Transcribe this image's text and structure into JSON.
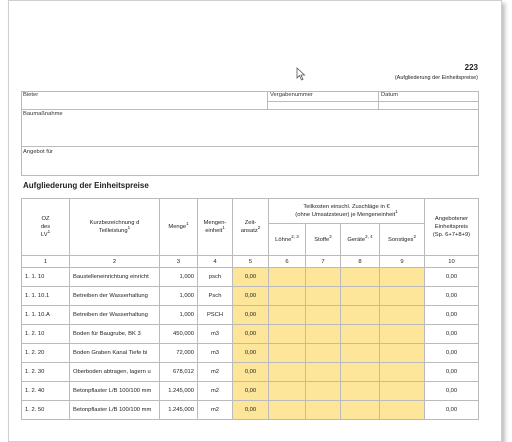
{
  "header": {
    "form_number": "223",
    "form_subtitle": "(Aufgliederung der Einheitspreise)"
  },
  "fields": {
    "bidder": "Bieter",
    "award_number": "Vergabenummer",
    "date": "Datum",
    "project": "Baumaßnahme",
    "offer_for": "Angebot für"
  },
  "section_title": "Aufgliederung der Einheitspreise",
  "table": {
    "columns": [
      {
        "lines": [
          "OZ",
          "des",
          "LV"
        ],
        "sup": "1"
      },
      {
        "lines": [
          "Kurzbezeichnung d",
          "Teilleistung"
        ],
        "sup": "1"
      },
      {
        "lines": [
          "Menge"
        ],
        "sup": "1"
      },
      {
        "lines": [
          "Mengen-",
          "einheit"
        ],
        "sup": "1"
      },
      {
        "lines": [
          "Zeit-",
          "ansatz"
        ],
        "sup": "2"
      },
      {
        "lines": [
          "Löhne"
        ],
        "sup": "2, 3"
      },
      {
        "lines": [
          "Stoffe"
        ],
        "sup": "2"
      },
      {
        "lines": [
          "Geräte"
        ],
        "sup": "2, 4"
      },
      {
        "lines": [
          "Sonstiges"
        ],
        "sup": "2"
      },
      {
        "lines": [
          "Angebotener",
          "Einheitspreis",
          "(Sp. 6+7+8+9)"
        ]
      }
    ],
    "group_header": {
      "line1": "Teilkosten einschl. Zuschläge in €",
      "line2": "(ohne Umsatzsteuer) je Mengeneinheit",
      "sup": "1"
    },
    "column_numbers": [
      "1",
      "2",
      "3",
      "4",
      "5",
      "6",
      "7",
      "8",
      "9",
      "10"
    ],
    "rows": [
      {
        "oz": "1. 1. 10",
        "description": "Baustelleneinrichtung einricht",
        "quantity": "1,000",
        "unit": "psch",
        "time": "0,00",
        "price": "0,00"
      },
      {
        "oz": "1. 1. 10.1",
        "description": "Betreiben der Wasserhaltung",
        "quantity": "1,000",
        "unit": "Psch",
        "time": "0,00",
        "price": "0,00"
      },
      {
        "oz": "1. 1. 10.A",
        "description": "Betreiben der Wasserhaltung",
        "quantity": "1,000",
        "unit": "PSCH",
        "time": "0,00",
        "price": "0,00"
      },
      {
        "oz": "1. 2. 10",
        "description": "Boden für Baugrube, BK 3",
        "quantity": "450,000",
        "unit": "m3",
        "time": "0,00",
        "price": "0,00"
      },
      {
        "oz": "1. 2. 20",
        "description": "Boden Graben Kanal Tiefe bi",
        "quantity": "72,000",
        "unit": "m3",
        "time": "0,00",
        "price": "0,00"
      },
      {
        "oz": "1. 2. 30",
        "description": "Oberboden abtragen, lagern u",
        "quantity": "678,012",
        "unit": "m2",
        "time": "0,00",
        "price": "0,00"
      },
      {
        "oz": "1. 2. 40",
        "description": "Betonpflaster L/B 100/100 mm",
        "quantity": "1.245,000",
        "unit": "m2",
        "time": "0,00",
        "price": "0,00"
      },
      {
        "oz": "1. 2. 50",
        "description": "Betonpflaster L/B 100/100 mm",
        "quantity": "1.245,000",
        "unit": "m2",
        "time": "0,00",
        "price": "0,00"
      }
    ]
  }
}
